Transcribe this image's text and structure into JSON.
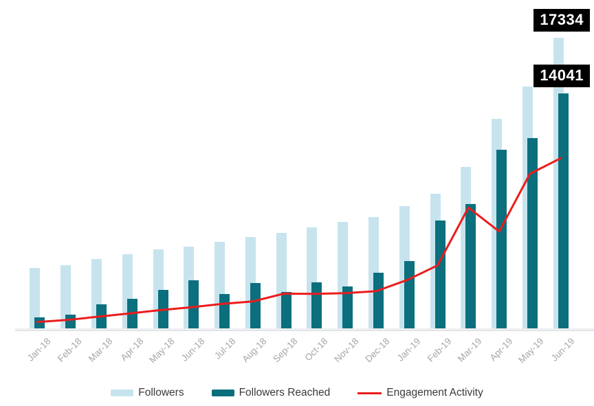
{
  "chart_data": {
    "type": "combo-bar-line",
    "title": "",
    "xlabel": "",
    "ylabel": "",
    "ylim": [
      0,
      18000
    ],
    "grid": false,
    "legend_position": "bottom",
    "categories": [
      "Jan-18",
      "Feb-18",
      "Mar-18",
      "Apr-18",
      "May-18",
      "Jun-18",
      "Jul-18",
      "Aug-18",
      "Sep-18",
      "Oct-18",
      "Nov-18",
      "Dec-18",
      "Jan-19",
      "Feb-19",
      "Mar-19",
      "Apr-19",
      "May-19",
      "Jun-19"
    ],
    "series": [
      {
        "name": "Followers",
        "type": "bar",
        "color": "#c7e4ee",
        "values": [
          3600,
          3760,
          4160,
          4410,
          4700,
          4900,
          5160,
          5450,
          5720,
          6010,
          6350,
          6660,
          7290,
          8030,
          9640,
          12510,
          14450,
          17334
        ]
      },
      {
        "name": "Followers Reached",
        "type": "bar",
        "color": "#0b6f7e",
        "values": [
          660,
          840,
          1420,
          1760,
          2280,
          2880,
          2060,
          2700,
          2170,
          2730,
          2490,
          3310,
          4000,
          6430,
          7410,
          10670,
          11380,
          14041
        ]
      },
      {
        "name": "Engagement Activity",
        "type": "line",
        "color": "#eb1c1c",
        "values": [
          380,
          510,
          700,
          890,
          1090,
          1260,
          1460,
          1610,
          2070,
          2060,
          2100,
          2220,
          2880,
          3760,
          7210,
          5790,
          9230,
          10160
        ]
      }
    ],
    "data_labels": [
      {
        "series": "Followers",
        "category": "Jun-19",
        "text": "17334"
      },
      {
        "series": "Followers Reached",
        "category": "Jun-19",
        "text": "14041"
      }
    ]
  },
  "legend": {
    "items": [
      {
        "label": "Followers"
      },
      {
        "label": "Followers Reached"
      },
      {
        "label": "Engagement Activity"
      }
    ]
  }
}
